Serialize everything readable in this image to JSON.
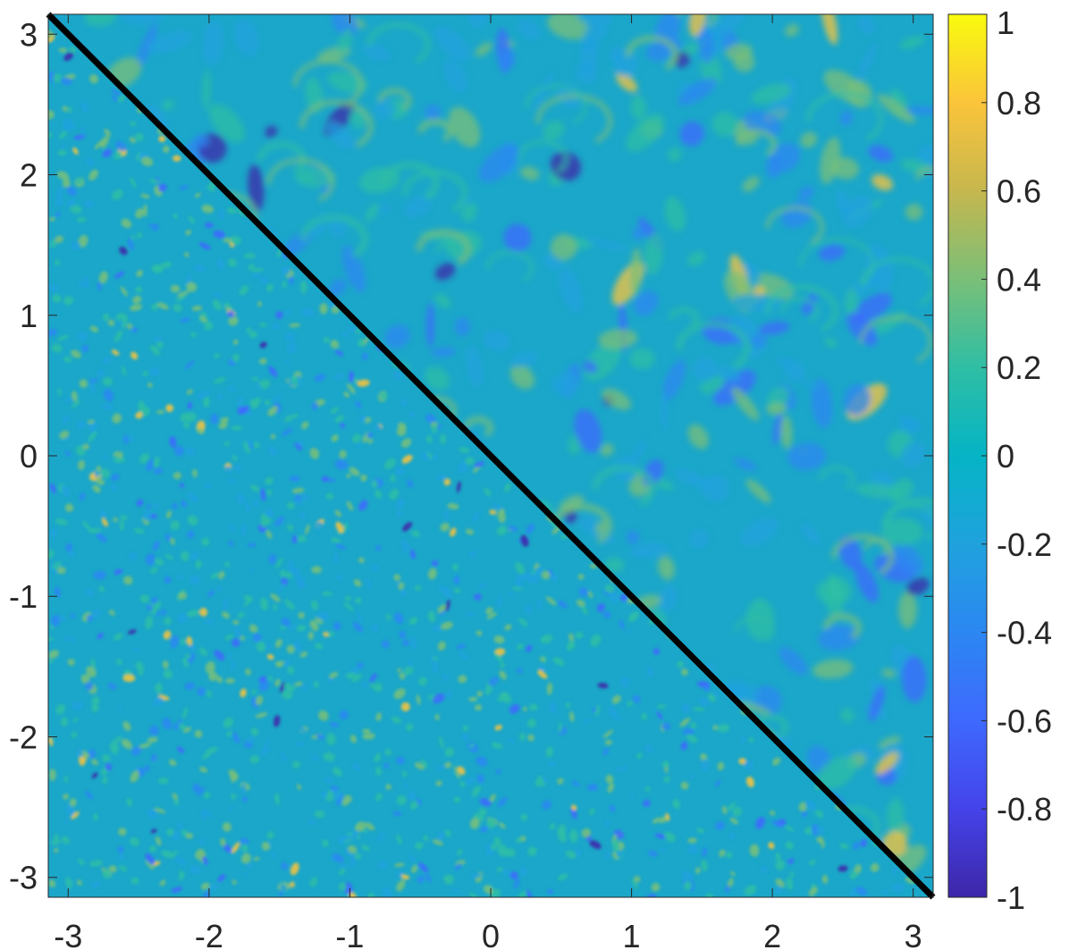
{
  "chart_data": {
    "type": "heatmap",
    "title": "",
    "xlabel": "",
    "ylabel": "",
    "xlim": [
      -3.1416,
      3.1416
    ],
    "ylim": [
      -3.1416,
      3.1416
    ],
    "x_ticks": [
      -3,
      -2,
      -1,
      0,
      1,
      2,
      3
    ],
    "x_tick_labels": [
      "-3",
      "-2",
      "-1",
      "0",
      "1",
      "2",
      "3"
    ],
    "y_ticks": [
      3,
      2,
      1,
      0,
      -1,
      -2,
      -3
    ],
    "y_tick_labels": [
      "3",
      "2",
      "1",
      "0",
      "-1",
      "-2",
      "-3"
    ],
    "colorbar": {
      "colormap": "parula",
      "range": [
        -1,
        1
      ],
      "ticks": [
        1,
        0.8,
        0.6,
        0.4,
        0.2,
        0,
        -0.2,
        -0.4,
        -0.6,
        -0.8,
        -1
      ],
      "tick_labels": [
        "1",
        "0.8",
        "0.6",
        "0.4",
        "0.2",
        "0",
        "-0.2",
        "-0.4",
        "-0.6",
        "-0.8",
        "-1"
      ]
    },
    "diagonal_line": {
      "from": [
        -3.1416,
        3.1416
      ],
      "to": [
        3.1416,
        -3.1416
      ],
      "color": "#000000"
    },
    "regions": {
      "upper_right": "large-scale swirling vortices",
      "lower_left": "fine-scale speckled field"
    },
    "colors": {
      "background_field": "#1ba7c9",
      "parula_low": "#3e26a8",
      "parula_high": "#f9fb0e"
    }
  }
}
